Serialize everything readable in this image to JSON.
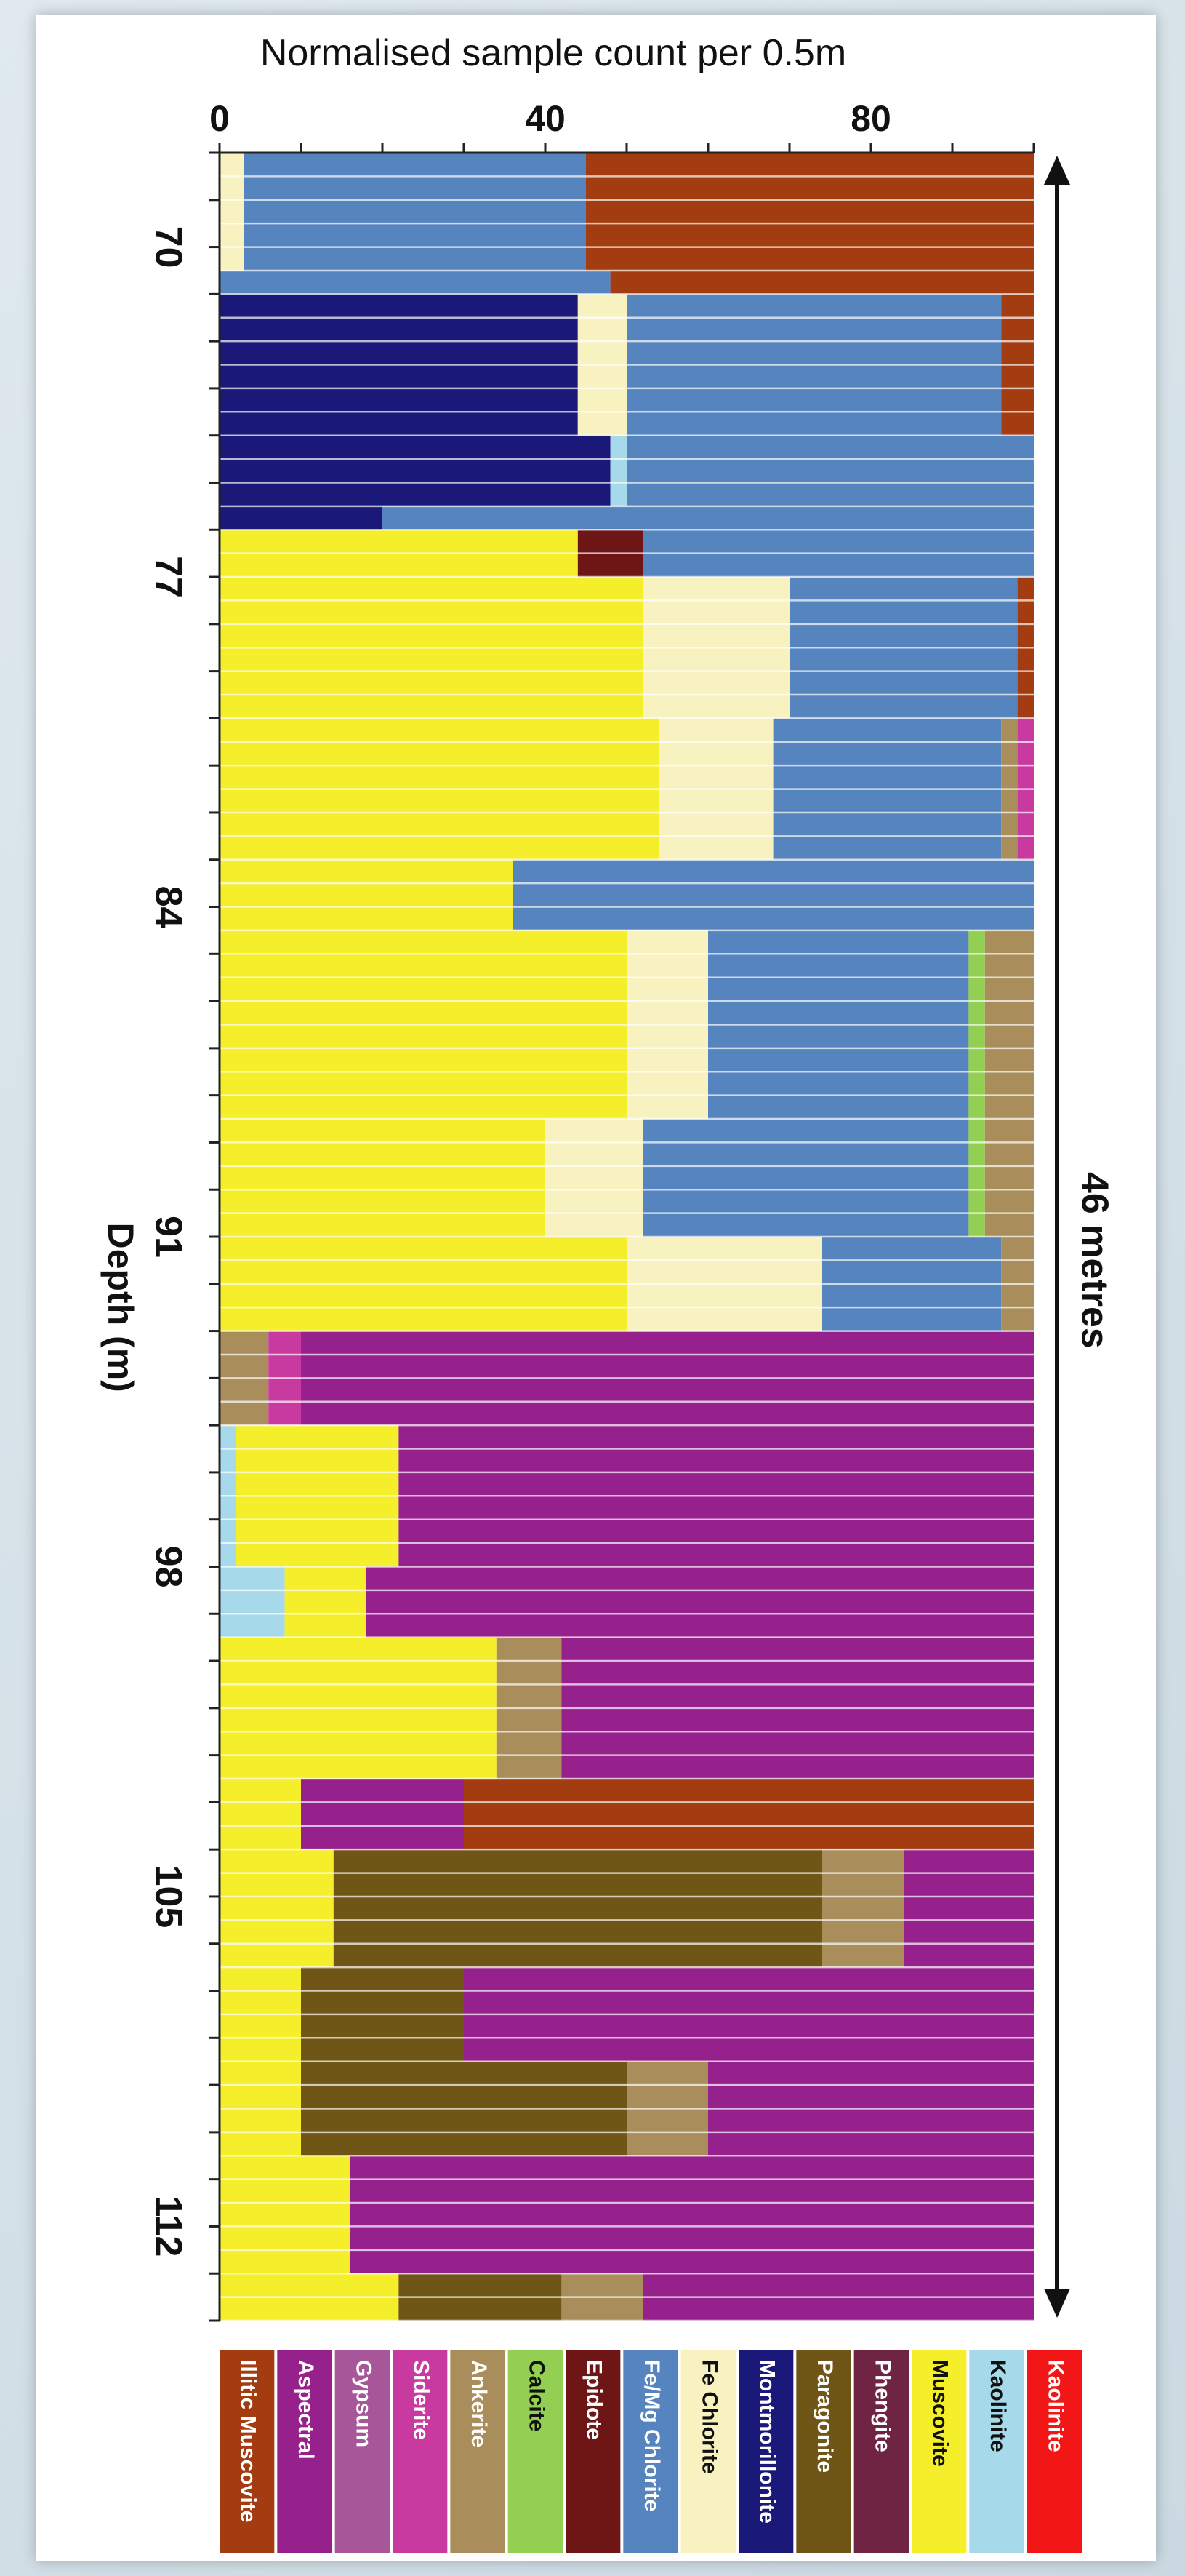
{
  "chart_data": {
    "type": "bar",
    "orientation": "horizontal-stacked",
    "title": "Normalised sample count per 0.5m",
    "xlabel": "Normalised sample count per 0.5m",
    "ylabel": "Depth (m)",
    "xlim": [
      0,
      100
    ],
    "xticks": [
      0,
      40,
      80
    ],
    "ylim": [
      68.0,
      114.0
    ],
    "yticks": [
      70,
      77,
      84,
      91,
      98,
      105,
      112
    ],
    "scale_annotation": "46 metres",
    "grid": false,
    "legend_position": "bottom",
    "minerals": [
      {
        "name": "Illitic Muscovite",
        "color": "#a33c10"
      },
      {
        "name": "Aspectral",
        "color": "#96218c"
      },
      {
        "name": "Gypsum",
        "color": "#a8569a"
      },
      {
        "name": "Siderite",
        "color": "#c83aa0"
      },
      {
        "name": "Ankerite",
        "color": "#a98e5c"
      },
      {
        "name": "Calcite",
        "color": "#93cf52"
      },
      {
        "name": "Epidote",
        "color": "#6e1616"
      },
      {
        "name": "Fe/Mg Chlorite",
        "color": "#5584bf"
      },
      {
        "name": "Fe Chlorite",
        "color": "#f7f2c0"
      },
      {
        "name": "Montmorillonite",
        "color": "#1a1878"
      },
      {
        "name": "Paragonite",
        "color": "#6f5616"
      },
      {
        "name": "Phengite",
        "color": "#702444"
      },
      {
        "name": "Muscovite",
        "color": "#f5ee2b"
      },
      {
        "name": "Kaolinite",
        "color": "#a6daea"
      },
      {
        "name": "Kaolinite",
        "color": "#f21616"
      }
    ],
    "intervals": [
      {
        "depth_from": 68.0,
        "depth_to": 70.5,
        "composition": {
          "Fe/Mg Chlorite": 42,
          "Fe Chlorite": 3,
          "Illitic Muscovite": 55
        }
      },
      {
        "depth_from": 70.5,
        "depth_to": 71.0,
        "composition": {
          "Fe/Mg Chlorite": 48,
          "Illitic Muscovite": 52
        }
      },
      {
        "depth_from": 71.0,
        "depth_to": 74.0,
        "composition": {
          "Montmorillonite": 44,
          "Fe Chlorite": 6,
          "Fe/Mg Chlorite": 46,
          "Illitic Muscovite": 4
        }
      },
      {
        "depth_from": 74.0,
        "depth_to": 75.5,
        "composition": {
          "Kaolinite": 2,
          "Montmorillonite": 48,
          "Fe/Mg Chlorite": 50
        }
      },
      {
        "depth_from": 75.5,
        "depth_to": 76.0,
        "composition": {
          "Montmorillonite": 20,
          "Fe/Mg Chlorite": 80
        }
      },
      {
        "depth_from": 76.0,
        "depth_to": 77.0,
        "composition": {
          "Muscovite": 44,
          "Epidote": 8,
          "Fe/Mg Chlorite": 48
        }
      },
      {
        "depth_from": 77.0,
        "depth_to": 80.0,
        "composition": {
          "Muscovite": 52,
          "Fe Chlorite": 18,
          "Fe/Mg Chlorite": 28,
          "Illitic Muscovite": 2
        }
      },
      {
        "depth_from": 80.0,
        "depth_to": 83.0,
        "composition": {
          "Muscovite": 54,
          "Fe Chlorite": 14,
          "Fe/Mg Chlorite": 28,
          "Ankerite": 2,
          "Siderite": 2
        }
      },
      {
        "depth_from": 83.0,
        "depth_to": 84.5,
        "composition": {
          "Muscovite": 36,
          "Fe/Mg Chlorite": 64
        }
      },
      {
        "depth_from": 84.5,
        "depth_to": 88.5,
        "composition": {
          "Muscovite": 50,
          "Fe Chlorite": 10,
          "Fe/Mg Chlorite": 32,
          "Ankerite": 6,
          "Calcite": 2
        }
      },
      {
        "depth_from": 88.5,
        "depth_to": 91.0,
        "composition": {
          "Muscovite": 40,
          "Fe Chlorite": 12,
          "Fe/Mg Chlorite": 40,
          "Ankerite": 6,
          "Calcite": 2
        }
      },
      {
        "depth_from": 91.0,
        "depth_to": 93.0,
        "composition": {
          "Muscovite": 50,
          "Fe Chlorite": 24,
          "Fe/Mg Chlorite": 22,
          "Ankerite": 4
        }
      },
      {
        "depth_from": 93.0,
        "depth_to": 95.0,
        "composition": {
          "Ankerite": 6,
          "Aspectral": 90,
          "Siderite": 4
        }
      },
      {
        "depth_from": 95.0,
        "depth_to": 98.0,
        "composition": {
          "Muscovite": 20,
          "Aspectral": 78,
          "Kaolinite": 2
        }
      },
      {
        "depth_from": 98.0,
        "depth_to": 99.5,
        "composition": {
          "Kaolinite": 8,
          "Muscovite": 10,
          "Aspectral": 82
        }
      },
      {
        "depth_from": 99.5,
        "depth_to": 102.5,
        "composition": {
          "Muscovite": 34,
          "Ankerite": 8,
          "Aspectral": 58
        }
      },
      {
        "depth_from": 102.5,
        "depth_to": 104.0,
        "composition": {
          "Muscovite": 10,
          "Illitic Muscovite": 70,
          "Aspectral": 20
        }
      },
      {
        "depth_from": 104.0,
        "depth_to": 106.5,
        "composition": {
          "Paragonite": 60,
          "Muscovite": 14,
          "Ankerite": 10,
          "Aspectral": 16
        }
      },
      {
        "depth_from": 106.5,
        "depth_to": 108.5,
        "composition": {
          "Paragonite": 20,
          "Muscovite": 10,
          "Aspectral": 70
        }
      },
      {
        "depth_from": 108.5,
        "depth_to": 110.5,
        "composition": {
          "Paragonite": 40,
          "Muscovite": 10,
          "Ankerite": 10,
          "Aspectral": 40
        }
      },
      {
        "depth_from": 110.5,
        "depth_to": 113.0,
        "composition": {
          "Muscovite": 16,
          "Aspectral": 84
        }
      },
      {
        "depth_from": 113.0,
        "depth_to": 114.0,
        "composition": {
          "Muscovite": 22,
          "Paragonite": 20,
          "Ankerite": 10,
          "Aspectral": 48
        }
      }
    ]
  }
}
